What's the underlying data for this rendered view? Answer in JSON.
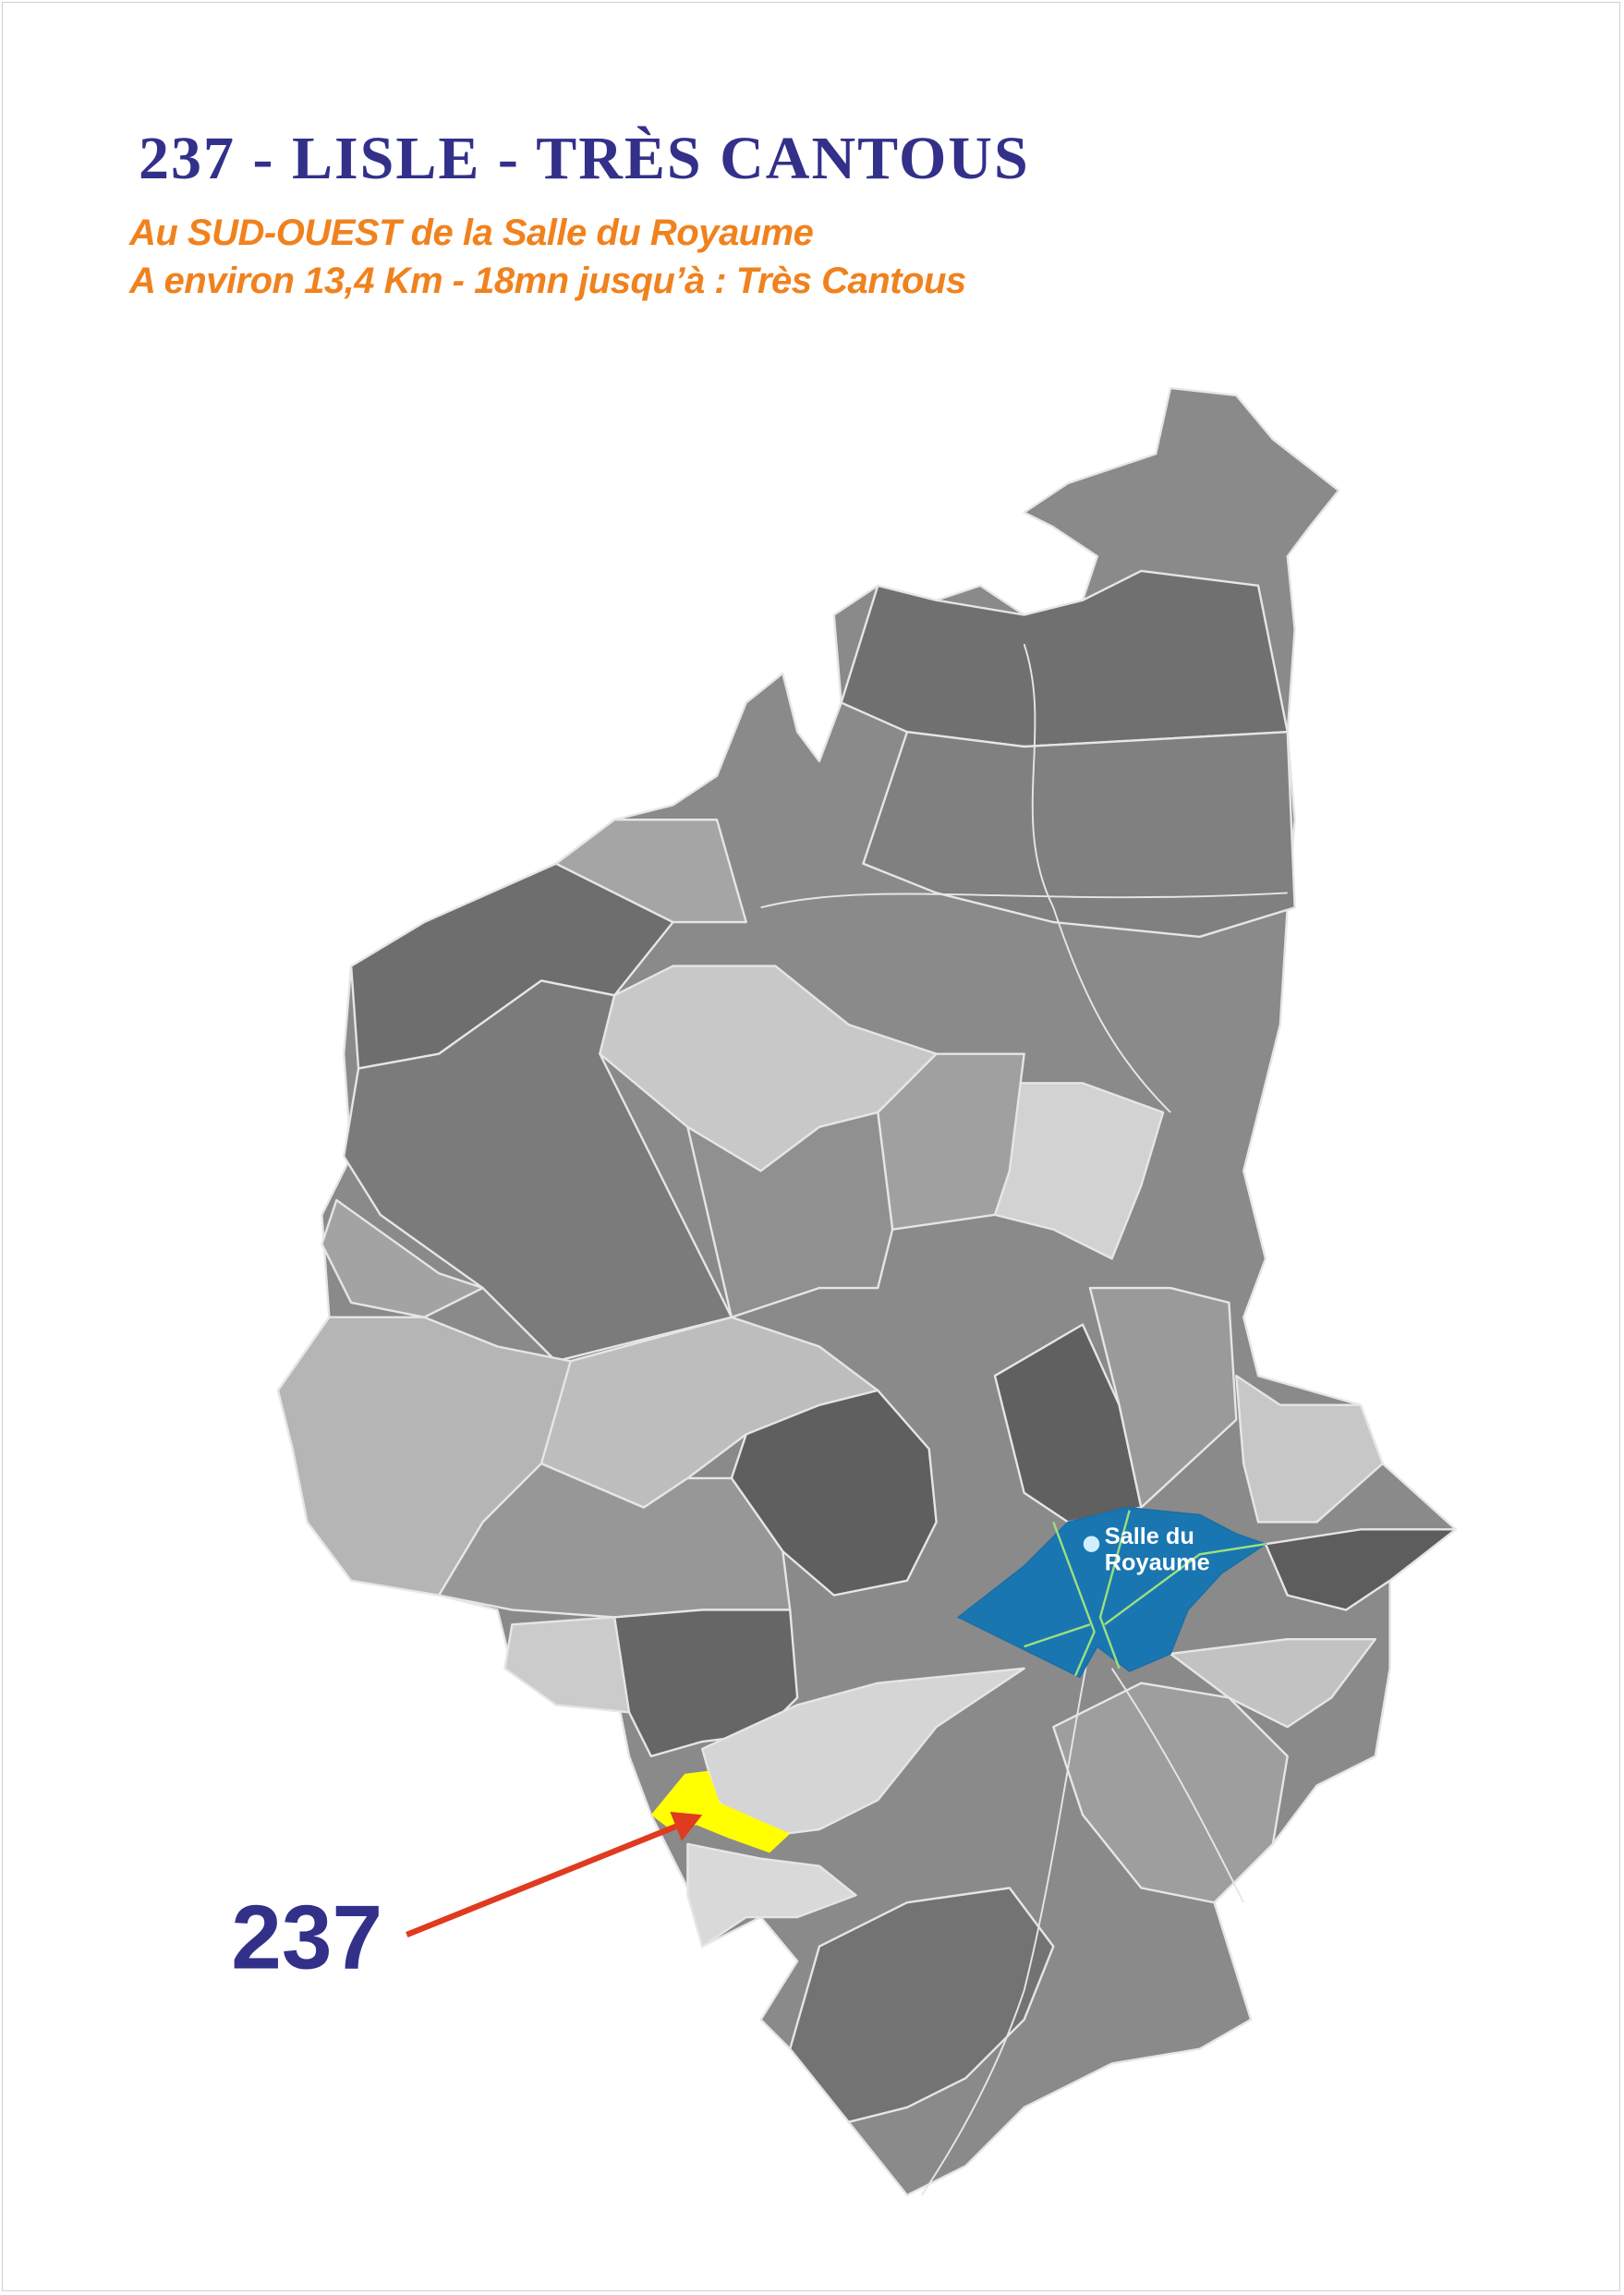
{
  "header": {
    "title": "237 - LISLE - TRÈS CANTOUS",
    "subtitle_line1": "Au SUD-OUEST de la Salle du Royaume",
    "subtitle_line2": "A environ 13,4 Km - 18mn jusqu’à :  Très Cantous"
  },
  "map": {
    "territory_number": "237",
    "place_label_line1": "Salle du",
    "place_label_line2": "Royaume",
    "colors": {
      "title": "#33308a",
      "subtitle": "#f0821e",
      "territory_highlight": "#ffff00",
      "salle_region": "#1a76b0",
      "arrow": "#e03a1f",
      "roads": "#9be07f"
    }
  }
}
